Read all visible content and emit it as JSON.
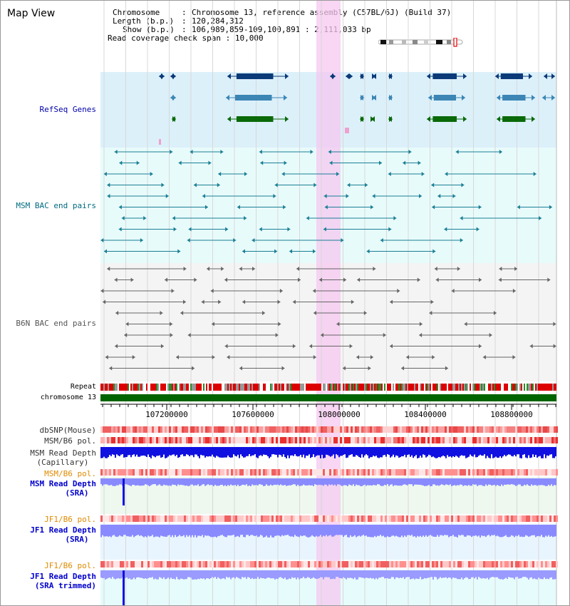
{
  "title": "Map View",
  "info": {
    "chromosome_key": "Chromosome",
    "chromosome_val": "Chromosome 13, reference assembly (C57BL/6J) (Build 37)",
    "length_key": "Length (b.p.)",
    "length_val": "120,284,312",
    "show_key": "Show (b.p.)",
    "show_val": "106,989,859-109,100,891 : 2,111,033 bp",
    "span_key": "Read coverage check span",
    "span_val": "10,000"
  },
  "labels": {
    "refseq": "RefSeq Genes",
    "msm_bac": "MSM BAC end pairs",
    "b6n_bac": "B6N BAC end pairs",
    "repeat": "Repeat",
    "chromosome": "chromosome 13",
    "dbsnp": "dbSNP(Mouse)",
    "msm_b6_pol_1": "MSM/B6 pol.",
    "msm_depth_cap_1": "MSM Read Depth",
    "msm_depth_cap_2": "(Capillary)",
    "msm_b6_pol_2": "MSM/B6 pol.",
    "msm_depth_sra_1": "MSM Read Depth",
    "msm_depth_sra_2": "(SRA)",
    "jf1_b6_pol_1": "JF1/B6 pol.",
    "jf1_depth_sra_1": "JF1 Read Depth",
    "jf1_depth_sra_2": "(SRA)",
    "jf1_b6_pol_2": "JF1/B6 pol.",
    "jf1_depth_trim_1": "JF1 Read Depth",
    "jf1_depth_trim_2": "(SRA trimmed)"
  },
  "ruler": {
    "ticks": [
      "107200000",
      "107600000",
      "108000000",
      "108400000",
      "108800000"
    ]
  },
  "colors": {
    "refseq_label": "#0000aa",
    "msm_label": "#006a80",
    "b6n_label": "#555555",
    "orange_label": "#e08a00",
    "blue_label": "#0000cc",
    "highlight": "#f5c8f0",
    "refseq_bg": "#dcf0fa",
    "msm_bg": "#e8fbfb",
    "b6n_bg": "#f4f4f4"
  }
}
